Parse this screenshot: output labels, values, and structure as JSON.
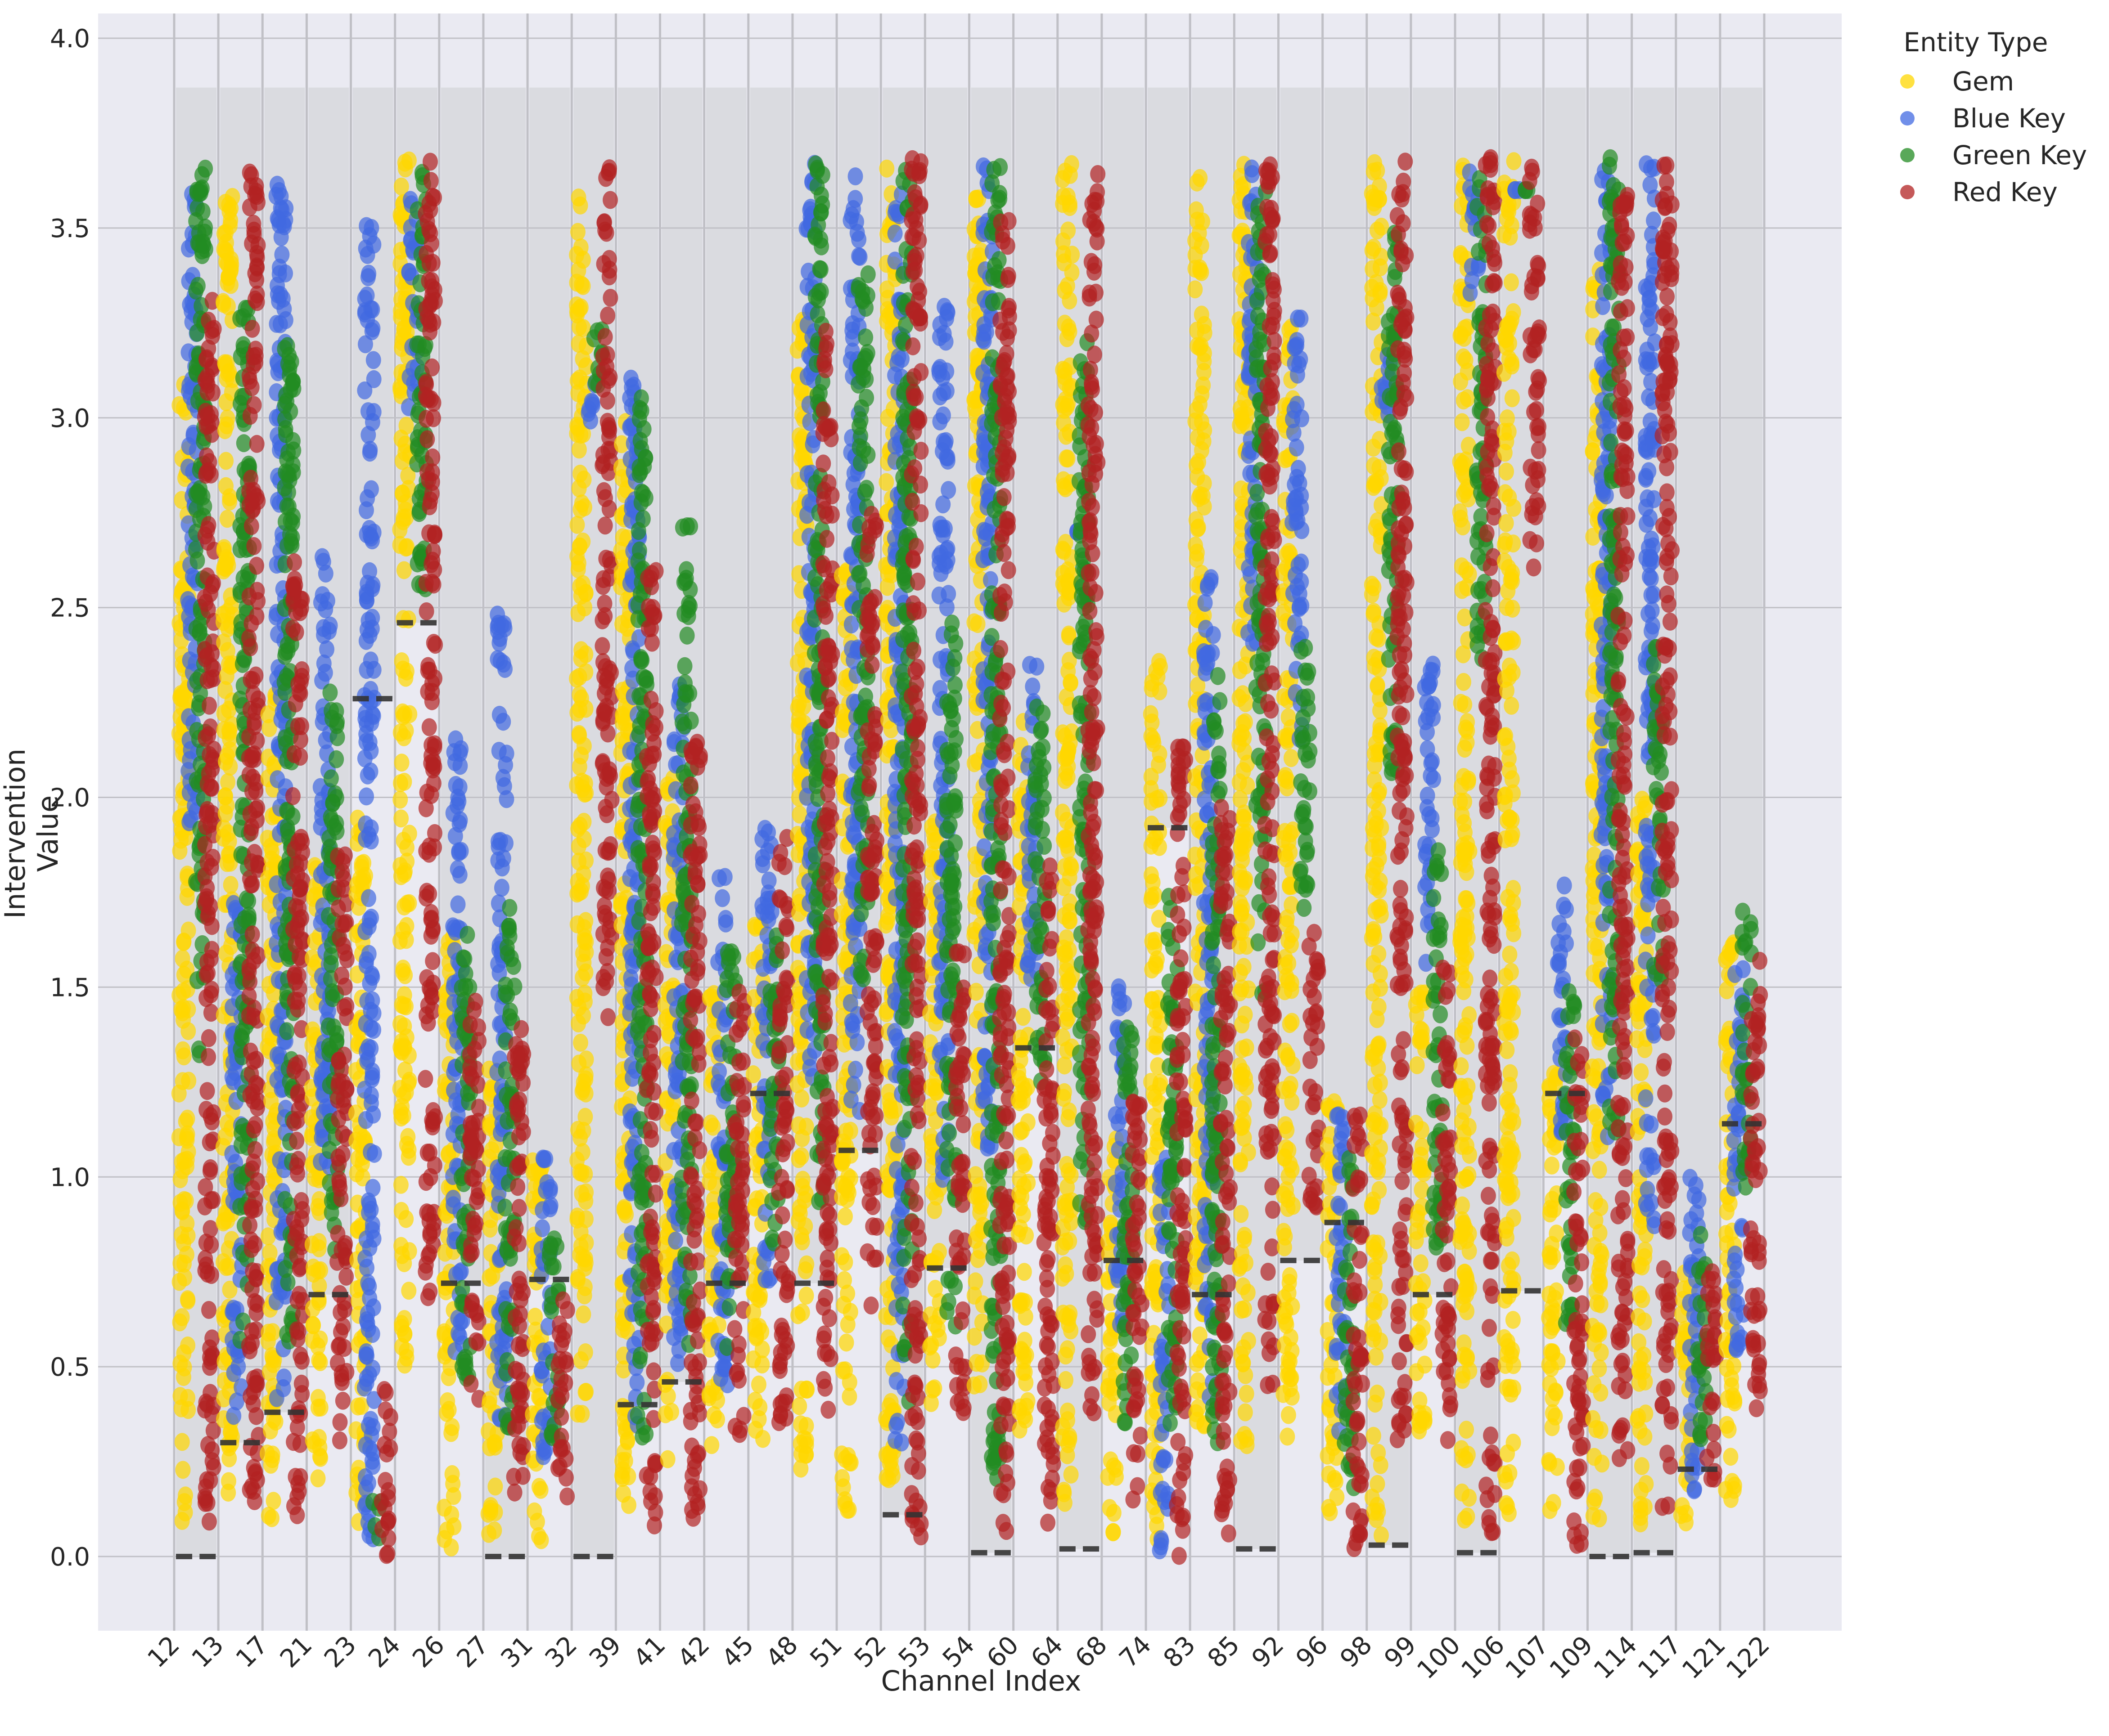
{
  "chart_data": {
    "type": "scatter",
    "title": "",
    "xlabel": "Channel Index",
    "ylabel": "Intervention Value",
    "ylim": [
      -0.2,
      4.05
    ],
    "yticks": [
      "0.0",
      "0.5",
      "1.0",
      "1.5",
      "2.0",
      "2.5",
      "3.0",
      "3.5",
      "4.0"
    ],
    "grid": true,
    "legend": {
      "title": "Entity Type",
      "position": "upper right (outside)",
      "entries": [
        {
          "label": "Gem",
          "color": "#FFD700"
        },
        {
          "label": "Blue Key",
          "color": "#4169E1"
        },
        {
          "label": "Green Key",
          "color": "#228B22"
        },
        {
          "label": "Red Key",
          "color": "#B22222"
        }
      ]
    },
    "categories": [
      "12",
      "13",
      "17",
      "21",
      "23",
      "24",
      "26",
      "27",
      "31",
      "32",
      "39",
      "41",
      "42",
      "45",
      "48",
      "51",
      "52",
      "53",
      "54",
      "60",
      "64",
      "68",
      "74",
      "83",
      "85",
      "92",
      "96",
      "98",
      "99",
      "100",
      "106",
      "107",
      "109",
      "114",
      "117",
      "121",
      "122"
    ],
    "band_top": 3.87,
    "baseline_note": "dashed line marks per-bin baseline; shaded band spans baseline to band_top",
    "bins": [
      {
        "channel": "12",
        "baseline": 0.0,
        "gem": [
          0.05,
          3.1
        ],
        "blue": [
          1.9,
          3.6
        ],
        "green": [
          1.3,
          3.68
        ],
        "red": [
          0.08,
          3.32
        ]
      },
      {
        "channel": "13",
        "baseline": 0.3,
        "gem": [
          0.15,
          3.68
        ],
        "blue": [
          0.34,
          1.72
        ],
        "green": [
          0.55,
          3.3
        ],
        "red": [
          0.08,
          3.68
        ]
      },
      {
        "channel": "17",
        "baseline": 0.38,
        "gem": [
          0.1,
          2.3
        ],
        "blue": [
          0.4,
          3.65
        ],
        "green": [
          0.5,
          3.2
        ],
        "red": [
          0.08,
          2.62
        ]
      },
      {
        "channel": "21",
        "baseline": 0.69,
        "gem": [
          0.2,
          1.85
        ],
        "blue": [
          0.9,
          2.67
        ],
        "green": [
          0.8,
          2.28
        ],
        "red": [
          0.3,
          1.85
        ]
      },
      {
        "channel": "23",
        "baseline": 2.26,
        "gem": [
          0.02,
          1.95
        ],
        "blue": [
          0.0,
          3.53
        ],
        "green": [
          0.05,
          0.15
        ],
        "red": [
          0.0,
          0.45
        ]
      },
      {
        "channel": "24",
        "baseline": 2.46,
        "gem": [
          0.5,
          3.68
        ],
        "blue": [
          3.0,
          3.6
        ],
        "green": [
          2.5,
          3.68
        ],
        "red": [
          0.65,
          3.68
        ]
      },
      {
        "channel": "26",
        "baseline": 0.72,
        "gem": [
          0.0,
          1.65
        ],
        "blue": [
          0.5,
          2.18
        ],
        "green": [
          0.45,
          1.65
        ],
        "red": [
          0.4,
          1.5
        ]
      },
      {
        "channel": "27",
        "baseline": 0.0,
        "gem": [
          0.05,
          1.3
        ],
        "blue": [
          0.35,
          2.49
        ],
        "green": [
          0.33,
          1.72
        ],
        "red": [
          0.02,
          1.42
        ]
      },
      {
        "channel": "31",
        "baseline": 0.73,
        "gem": [
          0.0,
          1.05
        ],
        "blue": [
          0.25,
          1.1
        ],
        "green": [
          0.3,
          0.84
        ],
        "red": [
          0.15,
          0.72
        ]
      },
      {
        "channel": "32",
        "baseline": 0.0,
        "gem": [
          0.3,
          3.62
        ],
        "blue": [
          2.95,
          3.1
        ],
        "green": [
          3.05,
          3.25
        ],
        "red": [
          1.42,
          3.68
        ]
      },
      {
        "channel": "39",
        "baseline": 0.4,
        "gem": [
          0.12,
          3.0
        ],
        "blue": [
          0.27,
          3.14
        ],
        "green": [
          0.3,
          3.08
        ],
        "red": [
          0.07,
          2.6
        ]
      },
      {
        "channel": "41",
        "baseline": 0.46,
        "gem": [
          0.25,
          2.05
        ],
        "blue": [
          0.5,
          2.3
        ],
        "green": [
          0.55,
          2.75
        ],
        "red": [
          0.07,
          2.15
        ]
      },
      {
        "channel": "42",
        "baseline": 0.72,
        "gem": [
          0.25,
          1.5
        ],
        "blue": [
          0.45,
          1.8
        ],
        "green": [
          0.55,
          1.6
        ],
        "red": [
          0.3,
          1.52
        ]
      },
      {
        "channel": "45",
        "baseline": 1.22,
        "gem": [
          0.3,
          1.7
        ],
        "blue": [
          0.7,
          1.92
        ],
        "green": [
          0.8,
          1.65
        ],
        "red": [
          0.35,
          1.9
        ]
      },
      {
        "channel": "48",
        "baseline": 0.72,
        "gem": [
          0.2,
          3.3
        ],
        "blue": [
          1.25,
          3.67
        ],
        "green": [
          0.9,
          3.67
        ],
        "red": [
          0.35,
          3.25
        ]
      },
      {
        "channel": "51",
        "baseline": 1.07,
        "gem": [
          0.12,
          2.6
        ],
        "blue": [
          1.1,
          3.66
        ],
        "green": [
          1.5,
          3.38
        ],
        "red": [
          0.65,
          2.77
        ]
      },
      {
        "channel": "52",
        "baseline": 0.11,
        "gem": [
          0.15,
          3.67
        ],
        "blue": [
          0.3,
          3.6
        ],
        "green": [
          0.4,
          3.69
        ],
        "red": [
          0.02,
          3.69
        ]
      },
      {
        "channel": "53",
        "baseline": 0.76,
        "gem": [
          0.4,
          1.95
        ],
        "blue": [
          0.95,
          3.3
        ],
        "green": [
          0.6,
          2.48
        ],
        "red": [
          0.38,
          1.6
        ]
      },
      {
        "channel": "54",
        "baseline": 0.01,
        "gem": [
          0.45,
          3.6
        ],
        "blue": [
          1.0,
          3.67
        ],
        "green": [
          0.18,
          3.67
        ],
        "red": [
          0.05,
          3.52
        ]
      },
      {
        "channel": "60",
        "baseline": 1.34,
        "gem": [
          0.3,
          2.2
        ],
        "blue": [
          1.5,
          2.36
        ],
        "green": [
          1.2,
          2.25
        ],
        "red": [
          0.02,
          1.85
        ]
      },
      {
        "channel": "64",
        "baseline": 0.02,
        "gem": [
          0.08,
          3.68
        ],
        "blue": [
          2.7,
          2.7
        ],
        "green": [
          0.86,
          3.2
        ],
        "red": [
          0.29,
          3.66
        ]
      },
      {
        "channel": "68",
        "baseline": 0.78,
        "gem": [
          0.05,
          1.1
        ],
        "blue": [
          0.6,
          1.5
        ],
        "green": [
          0.3,
          1.4
        ],
        "red": [
          0.12,
          1.2
        ]
      },
      {
        "channel": "74",
        "baseline": 1.92,
        "gem": [
          0.0,
          2.37
        ],
        "blue": [
          0.0,
          1.05
        ],
        "green": [
          0.3,
          1.75
        ],
        "red": [
          0.0,
          2.17
        ]
      },
      {
        "channel": "83",
        "baseline": 0.69,
        "gem": [
          0.3,
          3.66
        ],
        "blue": [
          0.37,
          2.6
        ],
        "green": [
          0.3,
          2.35
        ],
        "red": [
          0.05,
          2.02
        ]
      },
      {
        "channel": "85",
        "baseline": 0.02,
        "gem": [
          0.2,
          3.68
        ],
        "blue": [
          2.4,
          3.67
        ],
        "green": [
          1.45,
          3.6
        ],
        "red": [
          0.44,
          3.68
        ]
      },
      {
        "channel": "92",
        "baseline": 0.78,
        "gem": [
          0.3,
          3.24
        ],
        "blue": [
          2.15,
          3.28
        ],
        "green": [
          1.65,
          2.4
        ],
        "red": [
          0.9,
          1.65
        ]
      },
      {
        "channel": "96",
        "baseline": 0.88,
        "gem": [
          0.1,
          1.2
        ],
        "blue": [
          0.3,
          1.18
        ],
        "green": [
          0.18,
          1.06
        ],
        "red": [
          0.02,
          1.17
        ]
      },
      {
        "channel": "98",
        "baseline": 0.03,
        "gem": [
          0.03,
          3.68
        ],
        "blue": [
          2.95,
          3.19
        ],
        "green": [
          2.03,
          3.5
        ],
        "red": [
          0.3,
          3.69
        ]
      },
      {
        "channel": "99",
        "baseline": 0.69,
        "gem": [
          0.32,
          1.5
        ],
        "blue": [
          1.5,
          2.35
        ],
        "green": [
          0.8,
          1.88
        ],
        "red": [
          0.3,
          1.55
        ]
      },
      {
        "channel": "100",
        "baseline": 0.01,
        "gem": [
          0.05,
          3.68
        ],
        "blue": [
          3.3,
          3.66
        ],
        "green": [
          2.35,
          3.66
        ],
        "red": [
          0.06,
          3.69
        ]
      },
      {
        "channel": "106",
        "baseline": 0.7,
        "gem": [
          0.07,
          3.68
        ],
        "blue": [
          3.6,
          3.6
        ],
        "green": [
          3.6,
          3.6
        ],
        "red": [
          2.6,
          3.69
        ]
      },
      {
        "channel": "107",
        "baseline": 1.22,
        "gem": [
          0.05,
          1.3
        ],
        "blue": [
          1.1,
          1.8
        ],
        "green": [
          0.6,
          1.53
        ],
        "red": [
          0.01,
          1.37
        ]
      },
      {
        "channel": "109",
        "baseline": 0.0,
        "gem": [
          0.1,
          3.4
        ],
        "blue": [
          1.1,
          3.68
        ],
        "green": [
          1.08,
          3.69
        ],
        "red": [
          0.25,
          3.6
        ]
      },
      {
        "channel": "114",
        "baseline": 0.01,
        "gem": [
          0.05,
          2.0
        ],
        "blue": [
          0.86,
          3.69
        ],
        "green": [
          1.52,
          2.4
        ],
        "red": [
          0.13,
          3.69
        ]
      },
      {
        "channel": "117",
        "baseline": 0.23,
        "gem": [
          0.05,
          0.75
        ],
        "blue": [
          0.15,
          1.0
        ],
        "green": [
          0.3,
          0.85
        ],
        "red": [
          0.19,
          0.78
        ]
      },
      {
        "channel": "121",
        "baseline": 1.14,
        "gem": [
          0.14,
          1.65
        ],
        "blue": [
          0.53,
          1.55
        ],
        "green": [
          0.95,
          1.7
        ],
        "red": [
          0.33,
          1.57
        ]
      },
      {
        "channel": "122",
        "baseline": 0.0,
        "gem": [
          0.3,
          3.69
        ],
        "blue": [
          1.45,
          3.69
        ],
        "green": [
          0.23,
          3.69
        ],
        "red": [
          0.18,
          3.69
        ]
      }
    ]
  },
  "legend": {
    "title": "Entity Type",
    "items": [
      {
        "label": "Gem",
        "color": "#FFD700"
      },
      {
        "label": "Blue Key",
        "color": "#4169E1"
      },
      {
        "label": "Green Key",
        "color": "#228B22"
      },
      {
        "label": "Red Key",
        "color": "#B22222"
      }
    ]
  },
  "axes": {
    "xlabel": "Channel Index",
    "ylabel": "Intervention Value"
  },
  "colors": {
    "plot_bg": "#EAEAF2",
    "band": "#DADBE0",
    "grid": "#C0C0C6",
    "dash": "#333333",
    "text": "#262626"
  }
}
